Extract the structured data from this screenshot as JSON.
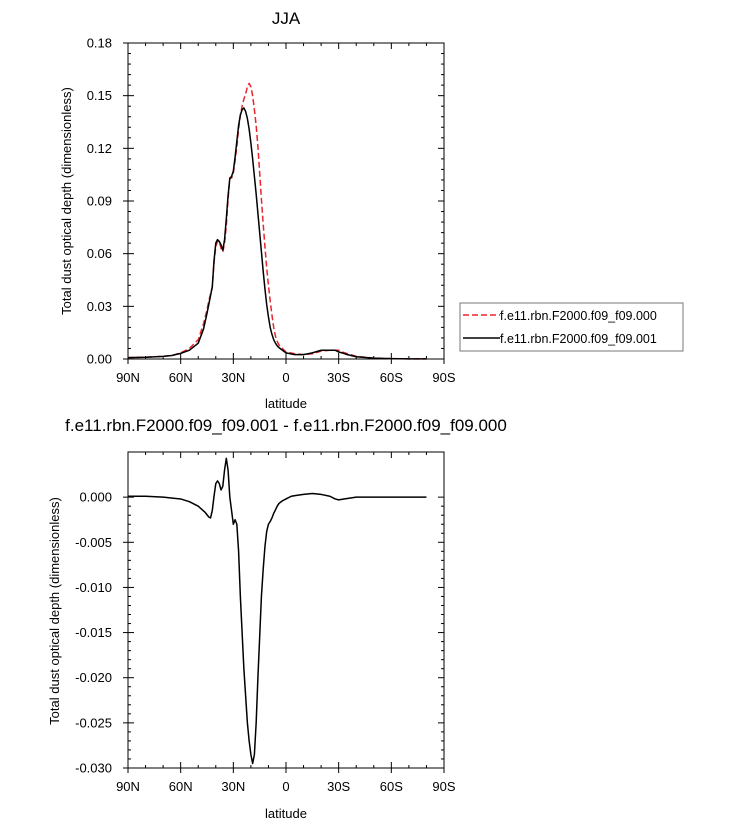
{
  "chart_data": [
    {
      "type": "line",
      "title": "JJA",
      "xlabel": "latitude",
      "ylabel": "Total dust optical depth (dimensionless)",
      "xlim": [
        90,
        -90
      ],
      "ylim": [
        0,
        0.18
      ],
      "x_ticks": [
        90,
        60,
        30,
        0,
        -30,
        -60,
        -90
      ],
      "x_tick_labels": [
        "90N",
        "60N",
        "30N",
        "0",
        "30S",
        "60S",
        "90S"
      ],
      "y_ticks": [
        0,
        0.03,
        0.06,
        0.09,
        0.12,
        0.15,
        0.18
      ],
      "y_tick_labels": [
        "0.00",
        "0.03",
        "0.06",
        "0.09",
        "0.12",
        "0.15",
        "0.18"
      ],
      "legend_position": "right",
      "series": [
        {
          "name": "f.e11.rbn.F2000.f09_f09.000",
          "color": "#e8262d",
          "dash": "dashed",
          "x": [
            90,
            80,
            70,
            65,
            60,
            55,
            50,
            47,
            45,
            44,
            43,
            42,
            41,
            40,
            39,
            38,
            37,
            36,
            35,
            34,
            33,
            32,
            31,
            30,
            29,
            28,
            27,
            26,
            25,
            24,
            23,
            22,
            21,
            20,
            19,
            18,
            17,
            16,
            15,
            14,
            13,
            12,
            11,
            10,
            9,
            8,
            7,
            6,
            5,
            4,
            2,
            0,
            -5,
            -10,
            -15,
            -20,
            -25,
            -28,
            -30,
            -32,
            -35,
            -40,
            -50,
            -60,
            -70,
            -80
          ],
          "values": [
            0.0008,
            0.001,
            0.0015,
            0.002,
            0.0035,
            0.006,
            0.011,
            0.02,
            0.028,
            0.033,
            0.037,
            0.041,
            0.055,
            0.064,
            0.067,
            0.067,
            0.063,
            0.061,
            0.066,
            0.076,
            0.091,
            0.103,
            0.103,
            0.106,
            0.113,
            0.121,
            0.131,
            0.139,
            0.144,
            0.148,
            0.151,
            0.155,
            0.157,
            0.155,
            0.15,
            0.142,
            0.133,
            0.121,
            0.106,
            0.091,
            0.077,
            0.064,
            0.052,
            0.042,
            0.033,
            0.025,
            0.018,
            0.013,
            0.01,
            0.008,
            0.006,
            0.004,
            0.003,
            0.0025,
            0.003,
            0.0045,
            0.005,
            0.005,
            0.005,
            0.004,
            0.003,
            0.0015,
            0.0005,
            0.0002,
            0.0001,
            0.0001
          ]
        },
        {
          "name": "f.e11.rbn.F2000.f09_f09.001",
          "color": "#000000",
          "dash": "solid",
          "x": [
            90,
            80,
            70,
            65,
            60,
            55,
            50,
            47,
            45,
            44,
            43,
            42,
            41,
            40,
            39,
            38,
            37,
            36,
            35,
            34,
            33,
            32,
            31,
            30,
            29,
            28,
            27,
            26,
            25,
            24,
            23,
            22,
            21,
            20,
            19,
            18,
            17,
            16,
            15,
            14,
            13,
            12,
            11,
            10,
            9,
            8,
            7,
            6,
            5,
            4,
            2,
            0,
            -5,
            -10,
            -15,
            -20,
            -25,
            -28,
            -30,
            -32,
            -35,
            -40,
            -50,
            -60,
            -70,
            -80
          ],
          "values": [
            0.0008,
            0.001,
            0.0015,
            0.002,
            0.0032,
            0.005,
            0.009,
            0.017,
            0.026,
            0.031,
            0.036,
            0.041,
            0.056,
            0.066,
            0.068,
            0.067,
            0.065,
            0.062,
            0.068,
            0.08,
            0.093,
            0.103,
            0.104,
            0.107,
            0.115,
            0.124,
            0.133,
            0.139,
            0.142,
            0.143,
            0.141,
            0.137,
            0.131,
            0.123,
            0.114,
            0.104,
            0.094,
            0.083,
            0.072,
            0.061,
            0.05,
            0.04,
            0.031,
            0.024,
            0.018,
            0.014,
            0.011,
            0.009,
            0.0075,
            0.0065,
            0.005,
            0.0035,
            0.0025,
            0.0025,
            0.0035,
            0.005,
            0.005,
            0.005,
            0.004,
            0.0035,
            0.0025,
            0.0013,
            0.0005,
            0.0002,
            0.0001,
            0.0001
          ]
        }
      ]
    },
    {
      "type": "line",
      "title": "f.e11.rbn.F2000.f09_f09.001 - f.e11.rbn.F2000.f09_f09.000",
      "xlabel": "latitude",
      "ylabel": "Total dust optical depth (dimensionless)",
      "xlim": [
        90,
        -90
      ],
      "ylim": [
        -0.03,
        0.005
      ],
      "x_ticks": [
        90,
        60,
        30,
        0,
        -30,
        -60,
        -90
      ],
      "x_tick_labels": [
        "90N",
        "60N",
        "30N",
        "0",
        "30S",
        "60S",
        "90S"
      ],
      "y_ticks": [
        0.0,
        -0.005,
        -0.01,
        -0.015,
        -0.02,
        -0.025,
        -0.03
      ],
      "y_tick_labels": [
        "0.000",
        "-0.005",
        "-0.010",
        "-0.015",
        "-0.020",
        "-0.025",
        "-0.030"
      ],
      "series": [
        {
          "color": "#000000",
          "dash": "solid",
          "x": [
            90,
            80,
            70,
            60,
            55,
            50,
            46,
            44,
            43,
            42,
            41,
            40,
            39,
            38,
            37,
            36,
            35,
            34,
            33,
            32,
            31,
            30,
            29,
            28,
            27,
            26,
            25,
            24,
            23,
            22,
            21,
            20,
            19,
            18,
            17,
            16,
            15,
            14,
            13,
            12,
            11,
            10,
            9,
            8,
            7,
            6,
            5,
            4,
            2,
            0,
            -3,
            -6,
            -10,
            -15,
            -20,
            -25,
            -28,
            -30,
            -33,
            -40,
            -50,
            -60,
            -70,
            -80
          ],
          "values": [
            0.0001,
            0.0001,
            0.0,
            -0.0002,
            -0.0005,
            -0.001,
            -0.0017,
            -0.0022,
            -0.0023,
            -0.0015,
            0.0001,
            0.0015,
            0.0018,
            0.0015,
            0.0008,
            0.0012,
            0.003,
            0.0043,
            0.003,
            0.0,
            -0.0015,
            -0.003,
            -0.0025,
            -0.003,
            -0.006,
            -0.011,
            -0.015,
            -0.019,
            -0.022,
            -0.025,
            -0.027,
            -0.0285,
            -0.0295,
            -0.0285,
            -0.025,
            -0.02,
            -0.0155,
            -0.011,
            -0.008,
            -0.0055,
            -0.0038,
            -0.003,
            -0.0027,
            -0.0023,
            -0.0018,
            -0.0014,
            -0.001,
            -0.0007,
            -0.0004,
            -0.0002,
            0.0001,
            0.0002,
            0.0003,
            0.0004,
            0.0003,
            0.0001,
            -0.0002,
            -0.0003,
            -0.0002,
            0.0,
            0.0,
            0.0,
            0.0,
            0.0
          ]
        }
      ]
    }
  ]
}
